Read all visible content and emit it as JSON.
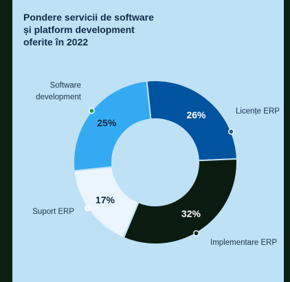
{
  "chart_data": {
    "type": "pie",
    "title_lines": [
      "Pondere servicii de software",
      "și platform development",
      "oferite în 2022"
    ],
    "slices": [
      {
        "label": "Licențe ERP",
        "label_lines": [
          "Licențe ERP"
        ],
        "value": 26,
        "value_text": "26%",
        "color": "#00539e",
        "text_color": "#ffffff",
        "dot_color": "#1a5fa8"
      },
      {
        "label": "Implementare ERP",
        "label_lines": [
          "Implementare ERP"
        ],
        "value": 32,
        "value_text": "32%",
        "color": "#0a1b10",
        "text_color": "#ffffff",
        "dot_color": "#0a1b10"
      },
      {
        "label": "Suport ERP",
        "label_lines": [
          "Suport ERP"
        ],
        "value": 17,
        "value_text": "17%",
        "color": "#eaf5fd",
        "text_color": "#0e2a4a",
        "dot_color": "#eaf5fd"
      },
      {
        "label": "Software development",
        "label_lines": [
          "Software",
          "development"
        ],
        "value": 25,
        "value_text": "25%",
        "color": "#34aaf2",
        "text_color": "#0e2a4a",
        "dot_color": "#179a5a"
      }
    ]
  }
}
